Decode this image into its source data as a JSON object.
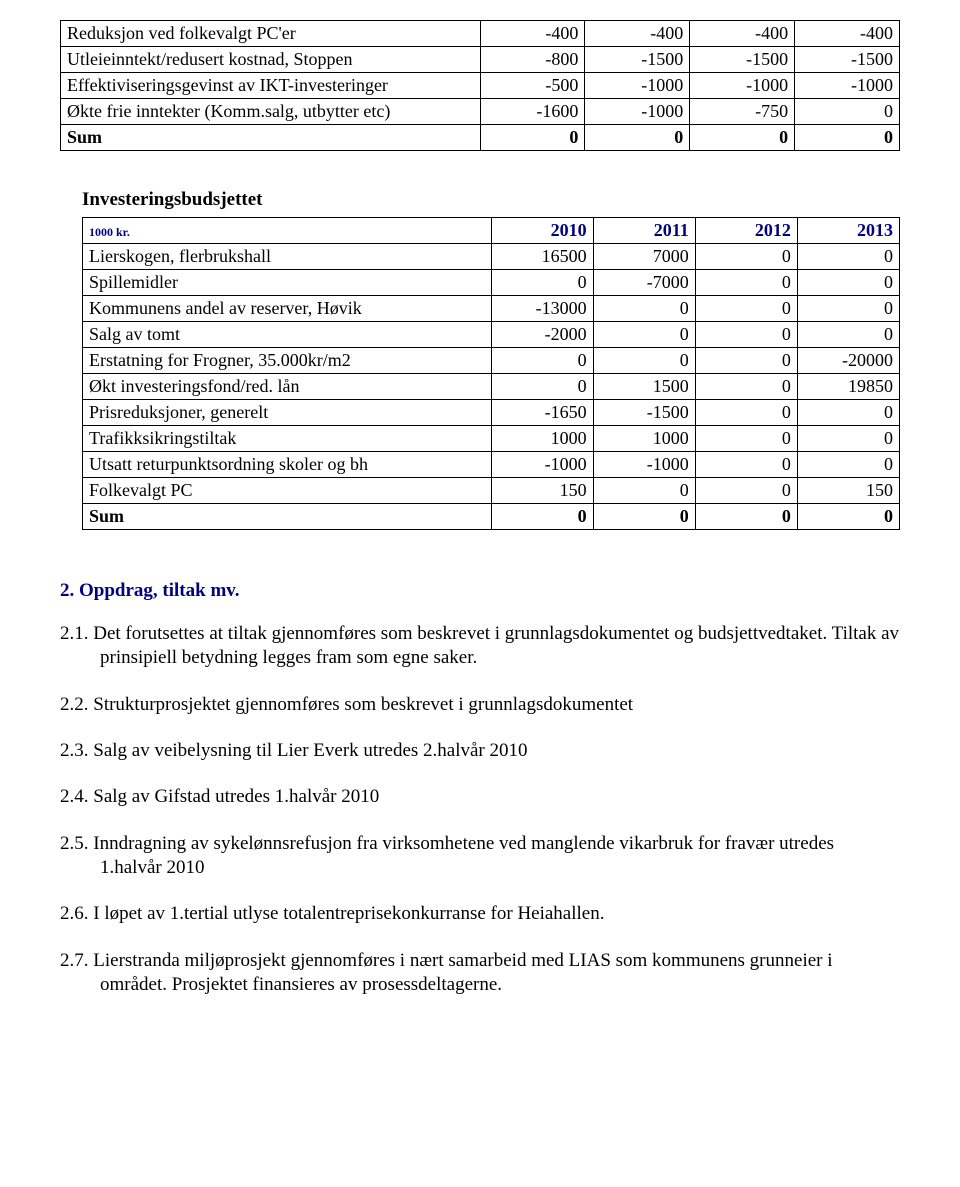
{
  "table1": {
    "rows": [
      {
        "label": "Reduksjon ved folkevalgt PC'er",
        "c": [
          "-400",
          "-400",
          "-400",
          "-400"
        ],
        "bold": false
      },
      {
        "label": "Utleieinntekt/redusert kostnad, Stoppen",
        "c": [
          "-800",
          "-1500",
          "-1500",
          "-1500"
        ],
        "bold": false
      },
      {
        "label": "Effektiviseringsgevinst av IKT-investeringer",
        "c": [
          "-500",
          "-1000",
          "-1000",
          "-1000"
        ],
        "bold": false
      },
      {
        "label": "Økte frie inntekter (Komm.salg, utbytter etc)",
        "c": [
          "-1600",
          "-1000",
          "-750",
          "0"
        ],
        "bold": false
      },
      {
        "label": "Sum",
        "c": [
          "0",
          "0",
          "0",
          "0"
        ],
        "bold": true
      }
    ]
  },
  "invest_heading": "Investeringsbudsjettet",
  "table2": {
    "head_label": "1000 kr.",
    "years": [
      "2010",
      "2011",
      "2012",
      "2013"
    ],
    "rows": [
      {
        "label": "Lierskogen, flerbrukshall",
        "c": [
          "16500",
          "7000",
          "0",
          "0"
        ],
        "bold": false
      },
      {
        "label": "Spillemidler",
        "c": [
          "0",
          "-7000",
          "0",
          "0"
        ],
        "bold": false
      },
      {
        "label": "Kommunens andel av reserver, Høvik",
        "c": [
          "-13000",
          "0",
          "0",
          "0"
        ],
        "bold": false
      },
      {
        "label": "Salg av tomt",
        "c": [
          "-2000",
          "0",
          "0",
          "0"
        ],
        "bold": false
      },
      {
        "label": "Erstatning for Frogner, 35.000kr/m2",
        "c": [
          "0",
          "0",
          "0",
          "-20000"
        ],
        "bold": false
      },
      {
        "label": "Økt investeringsfond/red. lån",
        "c": [
          "0",
          "1500",
          "0",
          "19850"
        ],
        "bold": false
      },
      {
        "label": "Prisreduksjoner, generelt",
        "c": [
          "-1650",
          "-1500",
          "0",
          "0"
        ],
        "bold": false
      },
      {
        "label": "Trafikksikringstiltak",
        "c": [
          "1000",
          "1000",
          "0",
          "0"
        ],
        "bold": false
      },
      {
        "label": "Utsatt returpunktsordning skoler og bh",
        "c": [
          "-1000",
          "-1000",
          "0",
          "0"
        ],
        "bold": false
      },
      {
        "label": "Folkevalgt PC",
        "c": [
          "150",
          "0",
          "0",
          "150"
        ],
        "bold": false
      },
      {
        "label": "Sum",
        "c": [
          "0",
          "0",
          "0",
          "0"
        ],
        "bold": true
      }
    ]
  },
  "section2": {
    "title": "2.  Oppdrag, tiltak mv.",
    "items": [
      "2.1. Det forutsettes at tiltak gjennomføres som beskrevet i grunnlagsdokumentet og budsjettvedtaket. Tiltak av prinsipiell betydning legges fram som egne saker.",
      "2.2. Strukturprosjektet gjennomføres som beskrevet i grunnlagsdokumentet",
      "2.3. Salg av veibelysning til Lier Everk utredes 2.halvår 2010",
      "2.4. Salg av Gifstad utredes 1.halvår 2010",
      "2.5. Inndragning av sykelønnsrefusjon fra virksomhetene ved manglende vikarbruk for fravær utredes 1.halvår 2010",
      "2.6. I løpet av 1.tertial utlyse totalentreprisekonkurranse for Heiahallen.",
      "2.7. Lierstranda miljøprosjekt gjennomføres i nært samarbeid med LIAS som kommunens grunneier i området. Prosjektet finansieres av prosessdeltagerne."
    ]
  },
  "colors": {
    "accent": "#000080",
    "text": "#000000",
    "bg": "#ffffff",
    "border": "#000000"
  }
}
